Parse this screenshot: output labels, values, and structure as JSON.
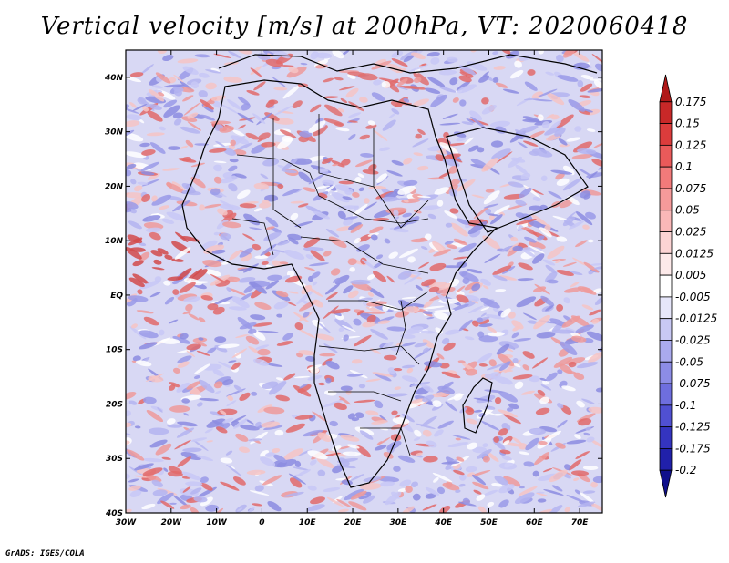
{
  "title": "Vertical velocity [m/s] at 200hPa, VT: 2020060418",
  "footer": "GrADS: IGES/COLA",
  "map": {
    "lon_labels": [
      "30W",
      "20W",
      "10W",
      "0",
      "10E",
      "20E",
      "30E",
      "40E",
      "50E",
      "60E",
      "70E"
    ],
    "lat_labels": [
      "40N",
      "30N",
      "20N",
      "10N",
      "EQ",
      "10S",
      "20S",
      "30S",
      "40S"
    ],
    "lon_range": [
      -30,
      75
    ],
    "lat_range": [
      -40,
      45
    ],
    "field": "vertical velocity",
    "units": "m/s",
    "level": "200hPa"
  },
  "colorbar": {
    "labels": [
      "0.175",
      "0.15",
      "0.125",
      "0.1",
      "0.075",
      "0.05",
      "0.025",
      "0.0125",
      "0.005",
      "-0.005",
      "-0.0125",
      "-0.025",
      "-0.05",
      "-0.075",
      "-0.1",
      "-0.125",
      "-0.175",
      "-0.2"
    ],
    "colors": [
      "#b01818",
      "#c82828",
      "#dc3c3c",
      "#ea5a5a",
      "#f27a7a",
      "#f69a9a",
      "#fab8b8",
      "#fcd4d4",
      "#fdeaea",
      "#ffffff",
      "#e6e6fa",
      "#c8c8f4",
      "#aaaaee",
      "#8c8ce6",
      "#6e6ede",
      "#5050d2",
      "#3434c0",
      "#2020aa",
      "#10108c"
    ]
  }
}
